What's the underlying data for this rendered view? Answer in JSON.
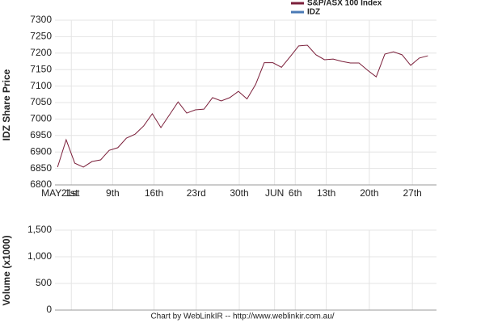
{
  "chart_data": [
    {
      "type": "line",
      "ylabel": "IDZ Share Price",
      "x": [
        0,
        1,
        2,
        3,
        4,
        5,
        6,
        7,
        8,
        9,
        10,
        11,
        12,
        13,
        14,
        15,
        16,
        17,
        18,
        19,
        20,
        21,
        22,
        23,
        24,
        25,
        26,
        27,
        28,
        29,
        30,
        31,
        32,
        33,
        34,
        35,
        36,
        37,
        38,
        39,
        40,
        41,
        42,
        43
      ],
      "xlim": [
        -0.3,
        44
      ],
      "xticks": [
        {
          "value": -0.7,
          "label": "MAY"
        },
        {
          "value": 1.5,
          "label": "21st"
        },
        {
          "value": 1.6,
          "label": "1st"
        },
        {
          "value": 6.4,
          "label": "9th"
        },
        {
          "value": 11.2,
          "label": "16th"
        },
        {
          "value": 16.1,
          "label": "23rd"
        },
        {
          "value": 21.1,
          "label": "30th"
        },
        {
          "value": 25.2,
          "label": "JUN"
        },
        {
          "value": 27.6,
          "label": "6th"
        },
        {
          "value": 31.2,
          "label": "13th"
        },
        {
          "value": 36.2,
          "label": "20th"
        },
        {
          "value": 41.2,
          "label": "27th"
        }
      ],
      "series": [
        {
          "name": "S&P/ASX 100 Index",
          "color": "#7b1f3a",
          "values": [
            6854,
            6937,
            6866,
            6854,
            6871,
            6876,
            6905,
            6913,
            6942,
            6954,
            6979,
            7016,
            6974,
            7013,
            7052,
            7018,
            7028,
            7030,
            7065,
            7055,
            7065,
            7084,
            7061,
            7105,
            7171,
            7171,
            7157,
            7189,
            7222,
            7224,
            7195,
            7180,
            7182,
            7175,
            7170,
            7170,
            7148,
            7128,
            7197,
            7204,
            7195,
            7163,
            7185,
            7192
          ]
        },
        {
          "name": "IDZ",
          "color": "#4a7ab5",
          "values": [
            null,
            null,
            null,
            null,
            null,
            null,
            null,
            null,
            null,
            null,
            null,
            null,
            null,
            null,
            null,
            null,
            null,
            null,
            null,
            null,
            null,
            null,
            null,
            null,
            null,
            null,
            null,
            null,
            null,
            null,
            null,
            null,
            null,
            null,
            null,
            null,
            null,
            null,
            null,
            null,
            null,
            null,
            null,
            null
          ]
        }
      ],
      "ylim": [
        6800,
        7300
      ],
      "yticks": [
        6800,
        6850,
        6900,
        6950,
        7000,
        7050,
        7100,
        7150,
        7200,
        7250,
        7300
      ],
      "grid": true
    },
    {
      "type": "bar",
      "ylabel": "Volume (x1000)",
      "ylim": [
        0,
        1500
      ],
      "yticks": [
        0,
        {
          "value": 500,
          "label": "500"
        },
        {
          "value": 1000,
          "label": "1,000"
        },
        {
          "value": 1500,
          "label": "1,500"
        }
      ],
      "grid": true
    }
  ],
  "footer": "Chart by WebLinkIR -- http://www.weblinkir.com.au/"
}
